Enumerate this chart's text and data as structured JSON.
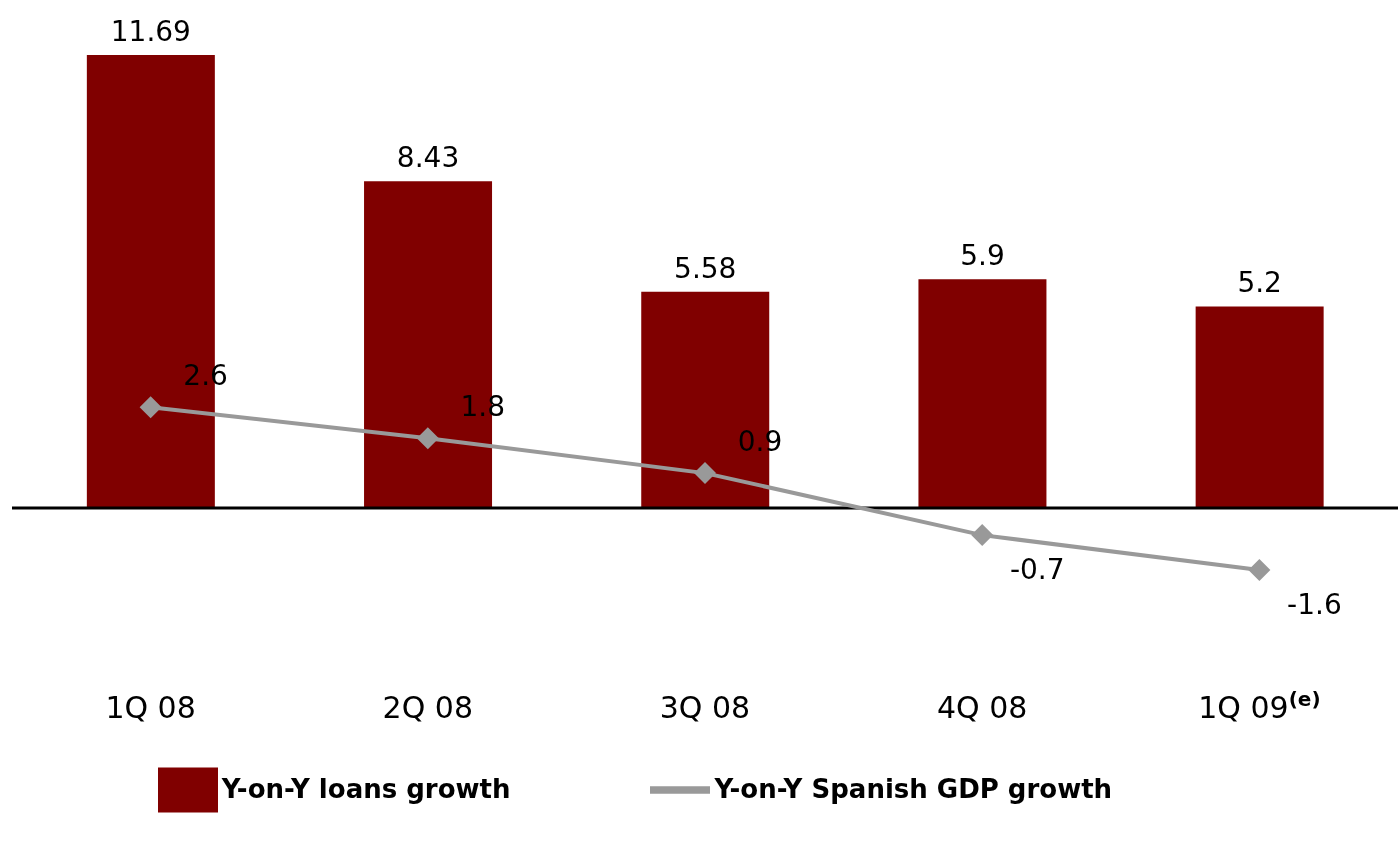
{
  "chart_data": {
    "type": "bar",
    "categories": [
      "1Q 08",
      "2Q 08",
      "3Q 08",
      "4Q 08",
      "1Q 09$^{(e)}$"
    ],
    "series": [
      {
        "name": "Y-on-Y loans growth",
        "color": "#800000",
        "values": [
          11.69,
          8.43,
          5.58,
          5.9,
          5.2
        ]
      },
      {
        "name": "Y-on-Y Spanish GDP growth",
        "type": "line",
        "color": "#999999",
        "values": [
          2.6,
          1.8,
          0.9,
          -0.7,
          -1.6
        ]
      }
    ],
    "data_labels": true,
    "marker": "diamond",
    "legend": "bottom",
    "grid": false,
    "ref_lines": [
      {
        "axis": "y",
        "value": 0,
        "color": "#000000"
      }
    ]
  }
}
